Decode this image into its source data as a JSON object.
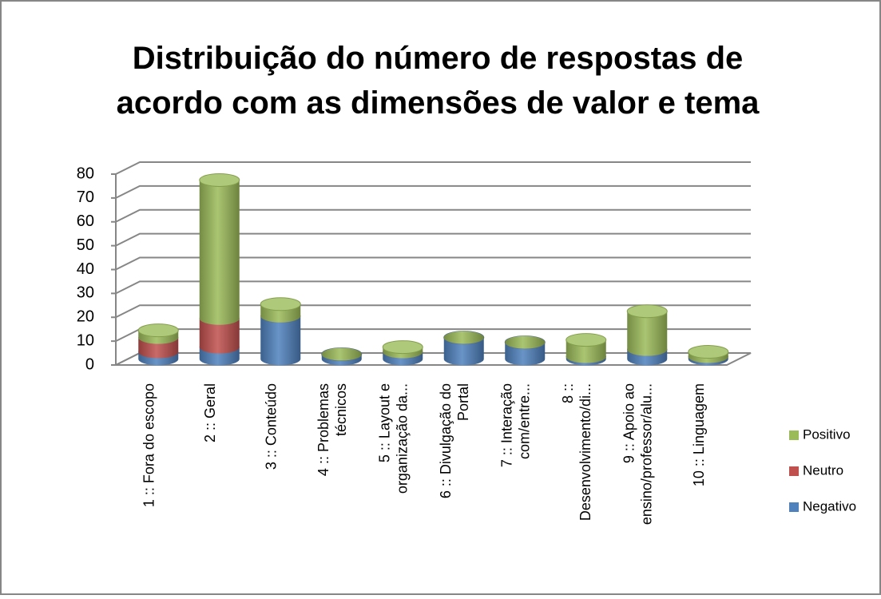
{
  "chart_data": {
    "type": "bar3d_stacked",
    "title": "Distribuição do número de respostas de acordo com as dimensões de valor e tema",
    "categories": [
      "1 :: Fora do escopo",
      "2 :: Geral",
      "3 :: Conteúdo",
      "4 :: Problemas técnicos",
      "5 :: Layout e organização da...",
      "6 :: Divulgação do Portal",
      "7 :: Interação com/entre...",
      "8 :: Desenvolvimento/di...",
      "9 :: Apoio ao ensino/professor/alu...",
      "10 :: Linguagem"
    ],
    "series": [
      {
        "name": "Negativo",
        "color": "#4f81bd",
        "values": [
          3,
          5,
          18,
          2,
          3,
          9,
          7,
          1,
          4,
          1
        ]
      },
      {
        "name": "Neutro",
        "color": "#c0504d",
        "values": [
          6,
          12,
          0,
          0,
          0,
          0,
          0,
          0,
          0,
          0
        ]
      },
      {
        "name": "Positivo",
        "color": "#9bbb59",
        "values": [
          3,
          58,
          5,
          0,
          2,
          0,
          0,
          7,
          16,
          2
        ]
      }
    ],
    "ylim": [
      0,
      80
    ],
    "yticks": [
      0,
      10,
      20,
      30,
      40,
      50,
      60,
      70,
      80
    ],
    "grid": true,
    "legend": "right"
  }
}
